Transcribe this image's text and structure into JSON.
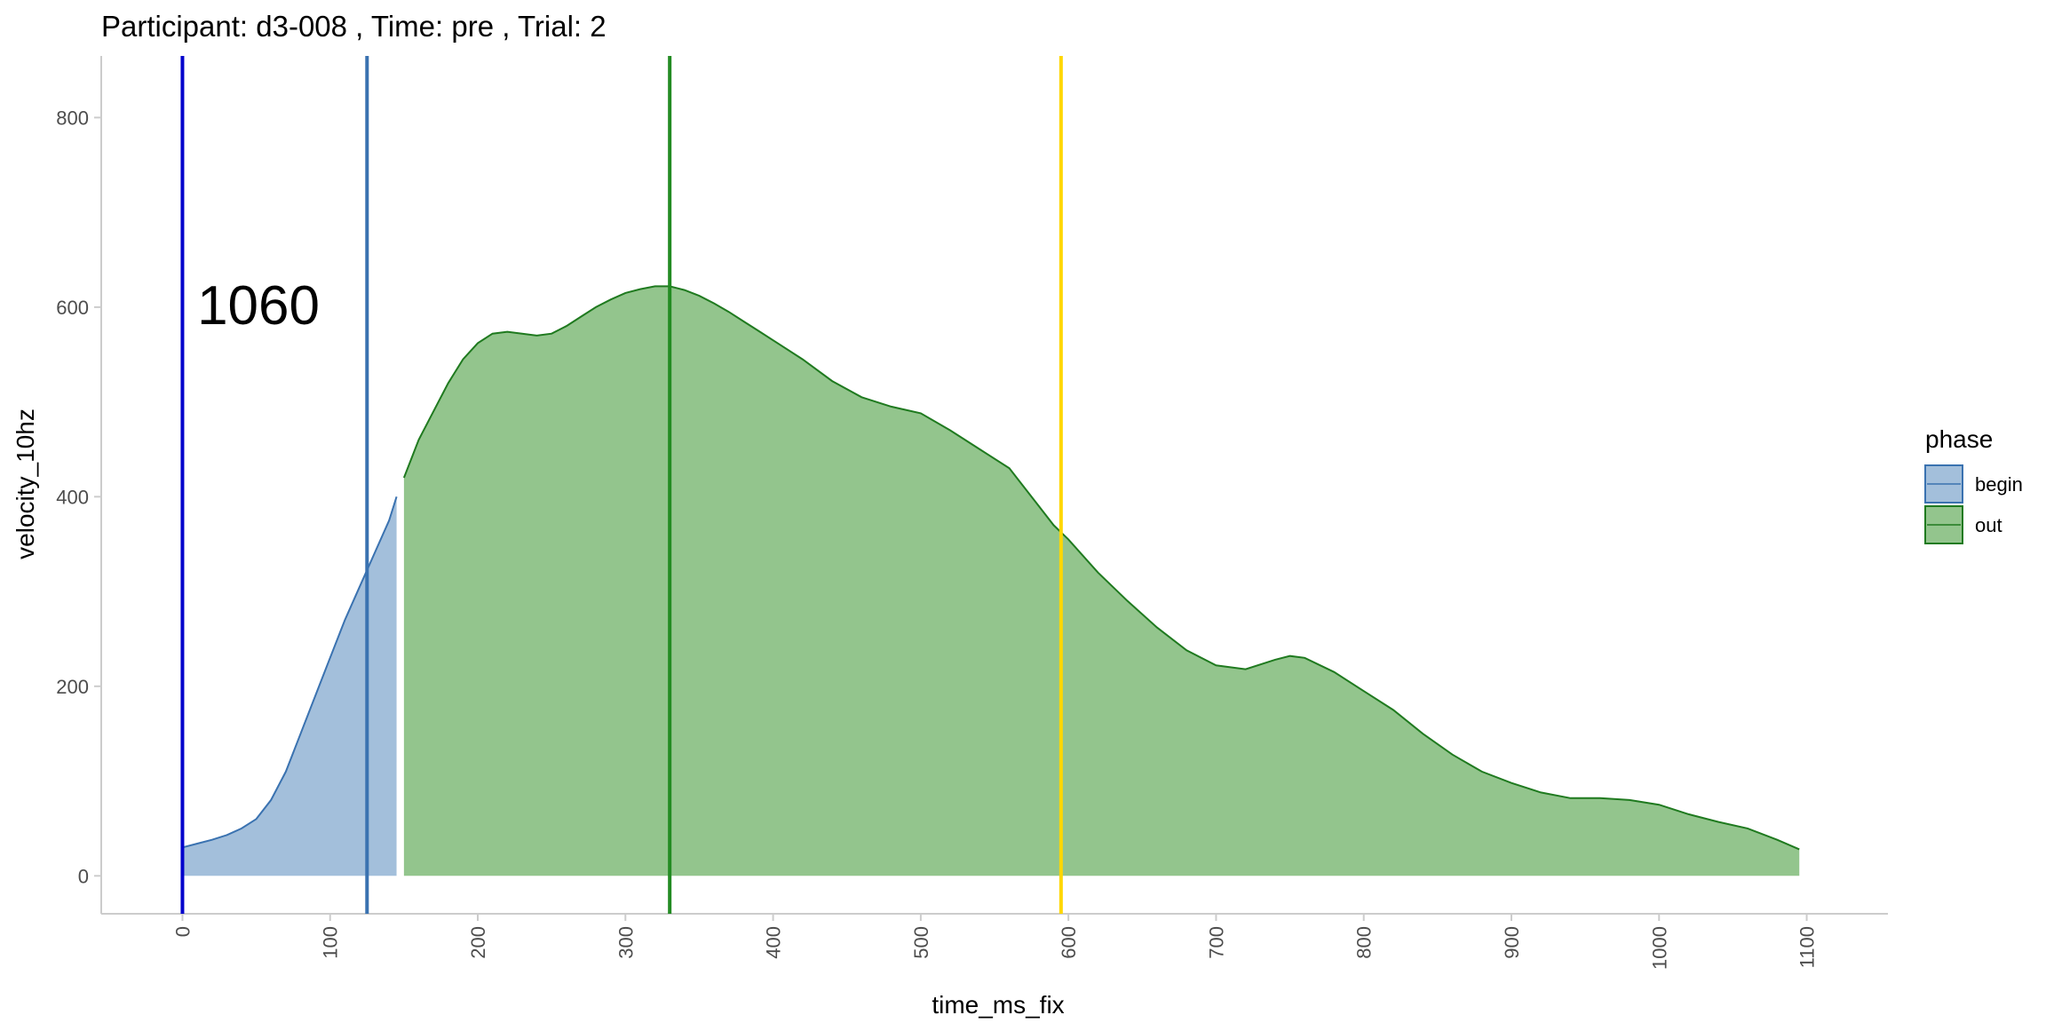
{
  "chart_data": {
    "type": "area",
    "title": "Participant:  d3-008 , Time: pre , Trial:  2",
    "xlabel": "time_ms_fix",
    "ylabel": "velocity_10hz",
    "xlim": [
      -55,
      1155
    ],
    "ylim": [
      -40,
      865
    ],
    "x_ticks": [
      0,
      100,
      200,
      300,
      400,
      500,
      600,
      700,
      800,
      900,
      1000,
      1100
    ],
    "y_ticks": [
      0,
      200,
      400,
      600,
      800
    ],
    "grid": false,
    "legend": {
      "title": "phase",
      "placement": "right",
      "entries": [
        {
          "name": "begin",
          "fill": "#a3bfdb",
          "stroke": "#3a72b0"
        },
        {
          "name": "out",
          "fill": "#93c58d",
          "stroke": "#1f7a1f"
        }
      ]
    },
    "annotation": {
      "text": "1060",
      "x": 10,
      "y": 610
    },
    "vlines": [
      {
        "x": 0,
        "color": "#0000cc"
      },
      {
        "x": 125,
        "color": "#3a72b0"
      },
      {
        "x": 330,
        "color": "#228b22"
      },
      {
        "x": 595,
        "color": "#ffd700"
      }
    ],
    "series": [
      {
        "name": "begin",
        "fill": "#a3bfdb",
        "stroke": "#3a72b0",
        "x": [
          0,
          10,
          20,
          30,
          40,
          50,
          60,
          70,
          80,
          90,
          100,
          110,
          120,
          130,
          140,
          145
        ],
        "y": [
          30,
          34,
          38,
          43,
          50,
          60,
          80,
          110,
          150,
          190,
          230,
          270,
          305,
          340,
          375,
          400
        ]
      },
      {
        "name": "out",
        "fill": "#93c58d",
        "stroke": "#1f7a1f",
        "x": [
          150,
          160,
          170,
          180,
          190,
          200,
          210,
          220,
          230,
          240,
          250,
          260,
          270,
          280,
          290,
          300,
          310,
          320,
          330,
          340,
          350,
          360,
          370,
          380,
          390,
          400,
          420,
          440,
          460,
          480,
          500,
          520,
          540,
          560,
          580,
          590,
          600,
          620,
          640,
          660,
          680,
          700,
          720,
          740,
          750,
          760,
          780,
          800,
          820,
          840,
          860,
          880,
          900,
          920,
          940,
          960,
          980,
          1000,
          1020,
          1040,
          1060,
          1080,
          1095
        ],
        "y": [
          420,
          460,
          490,
          520,
          545,
          562,
          572,
          574,
          572,
          570,
          572,
          580,
          590,
          600,
          608,
          615,
          619,
          622,
          622,
          618,
          612,
          604,
          595,
          585,
          575,
          565,
          545,
          522,
          505,
          495,
          488,
          470,
          450,
          430,
          390,
          370,
          355,
          320,
          290,
          262,
          238,
          222,
          218,
          228,
          232,
          230,
          215,
          195,
          175,
          150,
          128,
          110,
          98,
          88,
          82,
          82,
          80,
          75,
          65,
          57,
          50,
          38,
          28
        ]
      }
    ]
  }
}
